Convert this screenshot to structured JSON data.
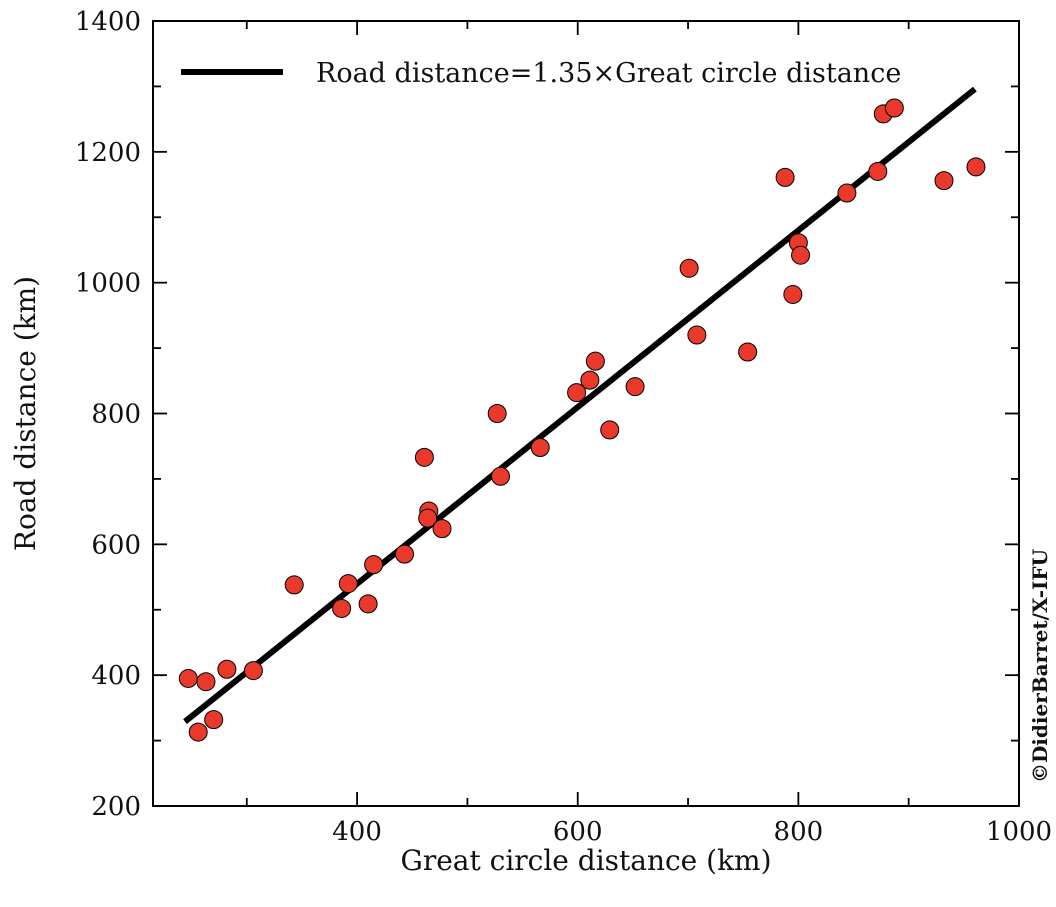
{
  "chart_data": {
    "type": "scatter",
    "xlabel": "Great circle distance (km)",
    "ylabel": "Road distance (km)",
    "xlim": [
      215,
      1000
    ],
    "ylim": [
      200,
      1400
    ],
    "xticks": [
      400,
      600,
      800,
      1000
    ],
    "yticks": [
      200,
      400,
      600,
      800,
      1000,
      1200,
      1400
    ],
    "grid": false,
    "legend_placement": "top-left",
    "credit": "©DidierBarret/X-IFU",
    "colors": {
      "points": "#e8392b",
      "line": "#000000"
    },
    "series": [
      {
        "name": "",
        "type": "scatter",
        "points": [
          [
            247,
            395
          ],
          [
            256,
            313
          ],
          [
            263,
            390
          ],
          [
            270,
            332
          ],
          [
            282,
            409
          ],
          [
            306,
            407
          ],
          [
            343,
            538
          ],
          [
            386,
            502
          ],
          [
            392,
            540
          ],
          [
            410,
            509
          ],
          [
            415,
            569
          ],
          [
            443,
            585
          ],
          [
            461,
            733
          ],
          [
            465,
            651
          ],
          [
            464,
            640
          ],
          [
            477,
            624
          ],
          [
            527,
            800
          ],
          [
            530,
            704
          ],
          [
            566,
            748
          ],
          [
            599,
            832
          ],
          [
            611,
            851
          ],
          [
            616,
            880
          ],
          [
            629,
            775
          ],
          [
            652,
            841
          ],
          [
            701,
            1022
          ],
          [
            708,
            920
          ],
          [
            754,
            894
          ],
          [
            788,
            1161
          ],
          [
            795,
            982
          ],
          [
            800,
            1061
          ],
          [
            802,
            1042
          ],
          [
            844,
            1137
          ],
          [
            872,
            1170
          ],
          [
            877,
            1258
          ],
          [
            887,
            1267
          ],
          [
            932,
            1156
          ],
          [
            961,
            1177
          ]
        ]
      },
      {
        "name": "Road distance=1.35×Great circle distance",
        "type": "line",
        "points": [
          [
            244,
            329
          ],
          [
            960,
            1296
          ]
        ]
      }
    ]
  }
}
